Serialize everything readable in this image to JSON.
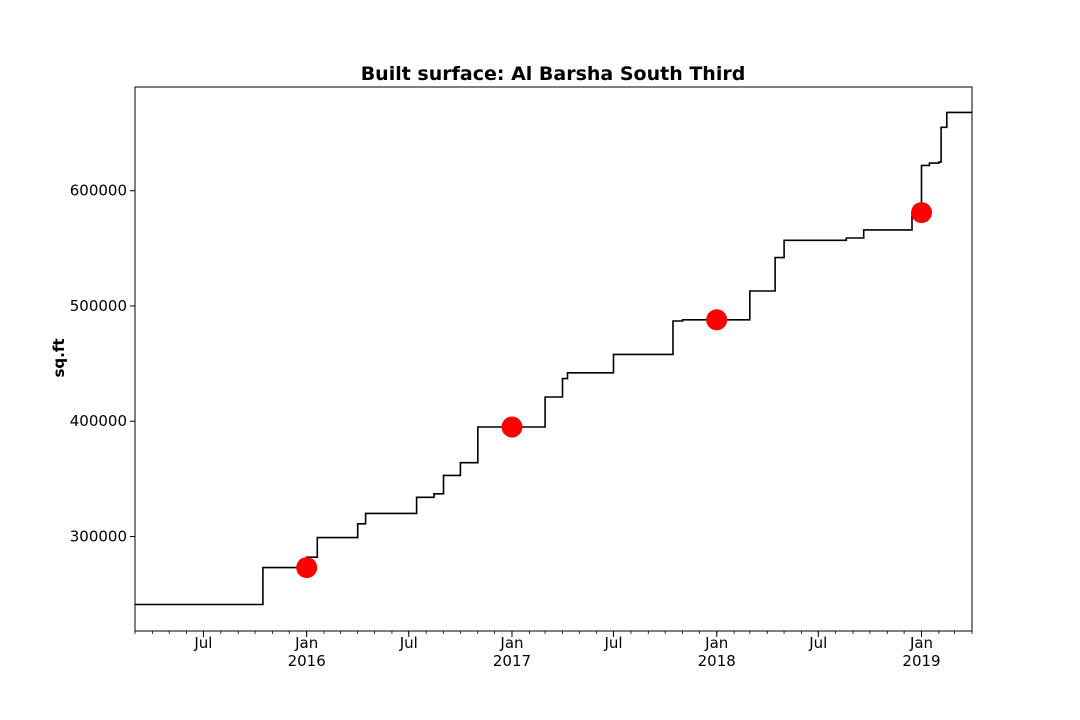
{
  "chart_data": {
    "type": "line",
    "title": "Built surface: Al Barsha South Third",
    "xlabel": "",
    "ylabel": "sq.ft",
    "xlim": [
      "2015-03-01",
      "2019-04-01"
    ],
    "ylim": [
      218000,
      690000
    ],
    "grid": false,
    "y_ticks": [
      300000,
      400000,
      500000,
      600000
    ],
    "x_ticks": [
      {
        "date": "2015-07-01",
        "label": "Jul",
        "year": ""
      },
      {
        "date": "2016-01-01",
        "label": "Jan",
        "year": "2016"
      },
      {
        "date": "2016-07-01",
        "label": "Jul",
        "year": ""
      },
      {
        "date": "2017-01-01",
        "label": "Jan",
        "year": "2017"
      },
      {
        "date": "2017-07-01",
        "label": "Jul",
        "year": ""
      },
      {
        "date": "2018-01-01",
        "label": "Jan",
        "year": "2018"
      },
      {
        "date": "2018-07-01",
        "label": "Jul",
        "year": ""
      },
      {
        "date": "2019-01-01",
        "label": "Jan",
        "year": "2019"
      }
    ],
    "series": [
      {
        "style": "step",
        "color": "#000000",
        "points": [
          {
            "x": "2015-03-01",
            "y": 241000
          },
          {
            "x": "2015-10-15",
            "y": 273000
          },
          {
            "x": "2016-01-01",
            "y": 282000
          },
          {
            "x": "2016-01-20",
            "y": 299000
          },
          {
            "x": "2016-04-01",
            "y": 311000
          },
          {
            "x": "2016-04-15",
            "y": 320000
          },
          {
            "x": "2016-07-15",
            "y": 334000
          },
          {
            "x": "2016-08-15",
            "y": 337000
          },
          {
            "x": "2016-09-01",
            "y": 353000
          },
          {
            "x": "2016-10-01",
            "y": 364000
          },
          {
            "x": "2016-11-01",
            "y": 395000
          },
          {
            "x": "2017-03-01",
            "y": 421000
          },
          {
            "x": "2017-04-01",
            "y": 437000
          },
          {
            "x": "2017-04-10",
            "y": 442000
          },
          {
            "x": "2017-07-01",
            "y": 458000
          },
          {
            "x": "2017-10-15",
            "y": 487000
          },
          {
            "x": "2017-11-01",
            "y": 488000
          },
          {
            "x": "2018-03-01",
            "y": 513000
          },
          {
            "x": "2018-04-15",
            "y": 542000
          },
          {
            "x": "2018-05-01",
            "y": 557000
          },
          {
            "x": "2018-08-20",
            "y": 559000
          },
          {
            "x": "2018-09-20",
            "y": 566000
          },
          {
            "x": "2018-12-15",
            "y": 580000
          },
          {
            "x": "2019-01-01",
            "y": 622000
          },
          {
            "x": "2019-01-15",
            "y": 624000
          },
          {
            "x": "2019-02-01",
            "y": 625000
          },
          {
            "x": "2019-02-05",
            "y": 655000
          },
          {
            "x": "2019-02-15",
            "y": 668000
          },
          {
            "x": "2019-04-01",
            "y": 668000
          }
        ]
      },
      {
        "style": "markers",
        "color": "#ff0000",
        "points": [
          {
            "x": "2016-01-01",
            "y": 273000
          },
          {
            "x": "2017-01-01",
            "y": 395000
          },
          {
            "x": "2018-01-01",
            "y": 488000
          },
          {
            "x": "2019-01-01",
            "y": 581000
          }
        ]
      }
    ]
  }
}
